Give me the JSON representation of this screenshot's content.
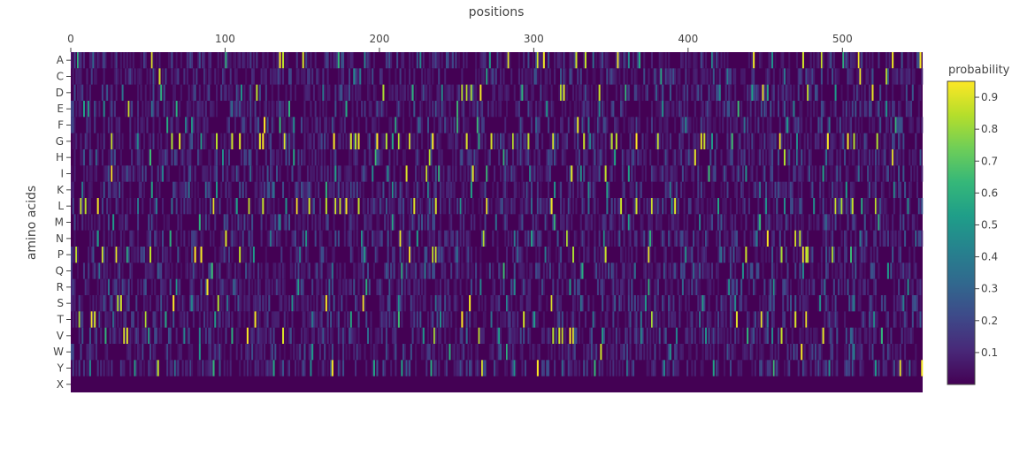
{
  "chart_data": {
    "type": "heatmap",
    "title": "",
    "xlabel": "positions",
    "ylabel": "amino acids",
    "x_range": [
      0,
      552
    ],
    "x_ticks": [
      0,
      100,
      200,
      300,
      400,
      500
    ],
    "x_tick_labels": [
      "0",
      "100",
      "200",
      "300",
      "400",
      "500"
    ],
    "categories": [
      "A",
      "C",
      "D",
      "E",
      "F",
      "G",
      "H",
      "I",
      "K",
      "L",
      "M",
      "N",
      "P",
      "Q",
      "R",
      "S",
      "T",
      "V",
      "W",
      "Y",
      "X"
    ],
    "colorbar": {
      "title": "probability",
      "range": [
        0.0,
        0.95
      ],
      "ticks": [
        0.1,
        0.2,
        0.3,
        0.4,
        0.5,
        0.6,
        0.7,
        0.8,
        0.9
      ],
      "tick_labels": [
        "0.1",
        "0.2",
        "0.3",
        "0.4",
        "0.5",
        "0.6",
        "0.7",
        "0.8",
        "0.9"
      ],
      "colorscale": [
        "#440154",
        "#482878",
        "#3e4989",
        "#31688e",
        "#26828e",
        "#1f9e89",
        "#35b779",
        "#6ece58",
        "#b5de2b",
        "#fde725"
      ]
    },
    "grid": false,
    "legend": "right (colorbar)",
    "high_probability_cells": [
      {
        "aa": "A",
        "pos": [
          52,
          135,
          137,
          150,
          283,
          302,
          306,
          327,
          333,
          354,
          442,
          474,
          486,
          510,
          532,
          550
        ]
      },
      {
        "aa": "C",
        "pos": [
          57,
          511,
          528
        ]
      },
      {
        "aa": "D",
        "pos": [
          120,
          202,
          253,
          256,
          259,
          265,
          317,
          319,
          342,
          448,
          477,
          519
        ]
      },
      {
        "aa": "E",
        "pos": [
          37
        ]
      },
      {
        "aa": "F",
        "pos": [
          125,
          328
        ]
      },
      {
        "aa": "G",
        "pos": [
          26,
          65,
          70,
          94,
          104,
          109,
          122,
          124,
          138,
          170,
          181,
          184,
          186,
          198,
          204,
          212,
          219,
          234,
          256,
          272,
          286,
          296,
          312,
          332,
          350,
          353,
          366,
          380,
          408,
          410,
          459,
          490,
          503,
          507,
          522
        ]
      },
      {
        "aa": "H",
        "pos": [
          232,
          404,
          462,
          532
        ]
      },
      {
        "aa": "I",
        "pos": [
          26,
          217,
          230,
          260,
          324,
          346
        ]
      },
      {
        "aa": "K",
        "pos": []
      },
      {
        "aa": "L",
        "pos": [
          6,
          9,
          17,
          92,
          115,
          124,
          146,
          154,
          165,
          171,
          174,
          178,
          186,
          222,
          236,
          269,
          311,
          356,
          366,
          376,
          391,
          495,
          499,
          506,
          521
        ]
      },
      {
        "aa": "M",
        "pos": []
      },
      {
        "aa": "N",
        "pos": [
          100,
          213,
          267,
          321,
          451,
          469,
          472
        ]
      },
      {
        "aa": "P",
        "pos": [
          3,
          20,
          29,
          51,
          80,
          84,
          109,
          219,
          234,
          236,
          325,
          346,
          374,
          437,
          460,
          474,
          476,
          477,
          493
        ]
      },
      {
        "aa": "Q",
        "pos": []
      },
      {
        "aa": "R",
        "pos": [
          88
        ]
      },
      {
        "aa": "S",
        "pos": [
          30,
          32,
          66,
          95,
          165,
          189,
          258,
          311
        ]
      },
      {
        "aa": "T",
        "pos": [
          5,
          13,
          15,
          48,
          119,
          253,
          293,
          376,
          431,
          447,
          469,
          476
        ]
      },
      {
        "aa": "V",
        "pos": [
          34,
          36,
          114,
          137,
          235,
          264,
          312,
          316,
          318,
          323,
          325,
          460,
          487
        ]
      },
      {
        "aa": "W",
        "pos": [
          343,
          473
        ]
      },
      {
        "aa": "Y",
        "pos": [
          56,
          169,
          266,
          302,
          537,
          551
        ]
      },
      {
        "aa": "X",
        "pos": []
      }
    ],
    "medium_probability_cells": [
      {
        "aa": "A",
        "pos": [
          4,
          14,
          100,
          173,
          190,
          226,
          271,
          338,
          361,
          368,
          415,
          454,
          500
        ]
      },
      {
        "aa": "C",
        "pos": [
          183,
          187,
          269,
          382,
          425,
          462
        ]
      },
      {
        "aa": "D",
        "pos": [
          33,
          58,
          110,
          163,
          221,
          240,
          292,
          359,
          379,
          420,
          441,
          451,
          495
        ]
      },
      {
        "aa": "E",
        "pos": [
          8,
          11,
          21,
          52,
          68,
          104,
          141,
          178,
          250,
          308,
          342,
          383,
          432,
          468,
          528
        ]
      },
      {
        "aa": "F",
        "pos": [
          62,
          74,
          78,
          135,
          144,
          210,
          225,
          250,
          263,
          301,
          335,
          398,
          436,
          464,
          491,
          534
        ]
      },
      {
        "aa": "G",
        "pos": [
          43,
          84,
          208,
          264,
          336,
          415,
          428,
          470
        ]
      },
      {
        "aa": "H",
        "pos": [
          16,
          51,
          98,
          144,
          197,
          280,
          352,
          470,
          489
        ]
      },
      {
        "aa": "I",
        "pos": [
          59,
          116,
          171,
          195,
          205,
          238,
          269,
          297,
          330,
          361,
          413,
          437,
          487,
          510
        ]
      },
      {
        "aa": "K",
        "pos": [
          7,
          52,
          76,
          87,
          94,
          131,
          165,
          208,
          231,
          259,
          313,
          335,
          347,
          388,
          446,
          502,
          533
        ]
      },
      {
        "aa": "L",
        "pos": [
          43,
          55,
          65,
          107,
          139,
          222,
          252,
          298,
          335,
          347,
          389,
          419,
          450,
          462,
          481,
          512,
          542
        ]
      },
      {
        "aa": "M",
        "pos": [
          27,
          83,
          135,
          208,
          275,
          313,
          361,
          407,
          446,
          489,
          523
        ]
      },
      {
        "aa": "N",
        "pos": [
          17,
          64,
          129,
          152,
          188,
          224,
          287,
          298,
          345,
          375,
          444,
          511,
          547
        ]
      },
      {
        "aa": "P",
        "pos": [
          36,
          118,
          148,
          190,
          250,
          289,
          307,
          398,
          421,
          505
        ]
      },
      {
        "aa": "Q",
        "pos": [
          18,
          56,
          91,
          169,
          214,
          229,
          280,
          331,
          365,
          403,
          435,
          474,
          529
        ]
      },
      {
        "aa": "R",
        "pos": [
          24,
          68,
          105,
          147,
          167,
          191,
          265,
          287,
          323,
          374,
          396,
          426,
          455,
          488,
          542
        ]
      },
      {
        "aa": "S",
        "pos": [
          78,
          101,
          143,
          212,
          236,
          282,
          330,
          372,
          409,
          430,
          485,
          507,
          539
        ]
      },
      {
        "aa": "T",
        "pos": [
          27,
          61,
          93,
          156,
          181,
          212,
          239,
          272,
          300,
          338,
          369,
          407,
          451,
          520
        ]
      },
      {
        "aa": "V",
        "pos": [
          22,
          50,
          73,
          83,
          104,
          192,
          228,
          256,
          277,
          344,
          369,
          392,
          411,
          438,
          454,
          505,
          525
        ]
      },
      {
        "aa": "W",
        "pos": [
          83,
          156,
          245,
          282,
          388,
          507
        ]
      },
      {
        "aa": "Y",
        "pos": [
          12,
          41,
          67,
          92,
          131,
          155,
          196,
          214,
          233,
          287,
          318,
          339,
          360,
          384,
          416,
          455,
          491,
          521,
          543
        ]
      },
      {
        "aa": "X",
        "pos": []
      }
    ]
  }
}
